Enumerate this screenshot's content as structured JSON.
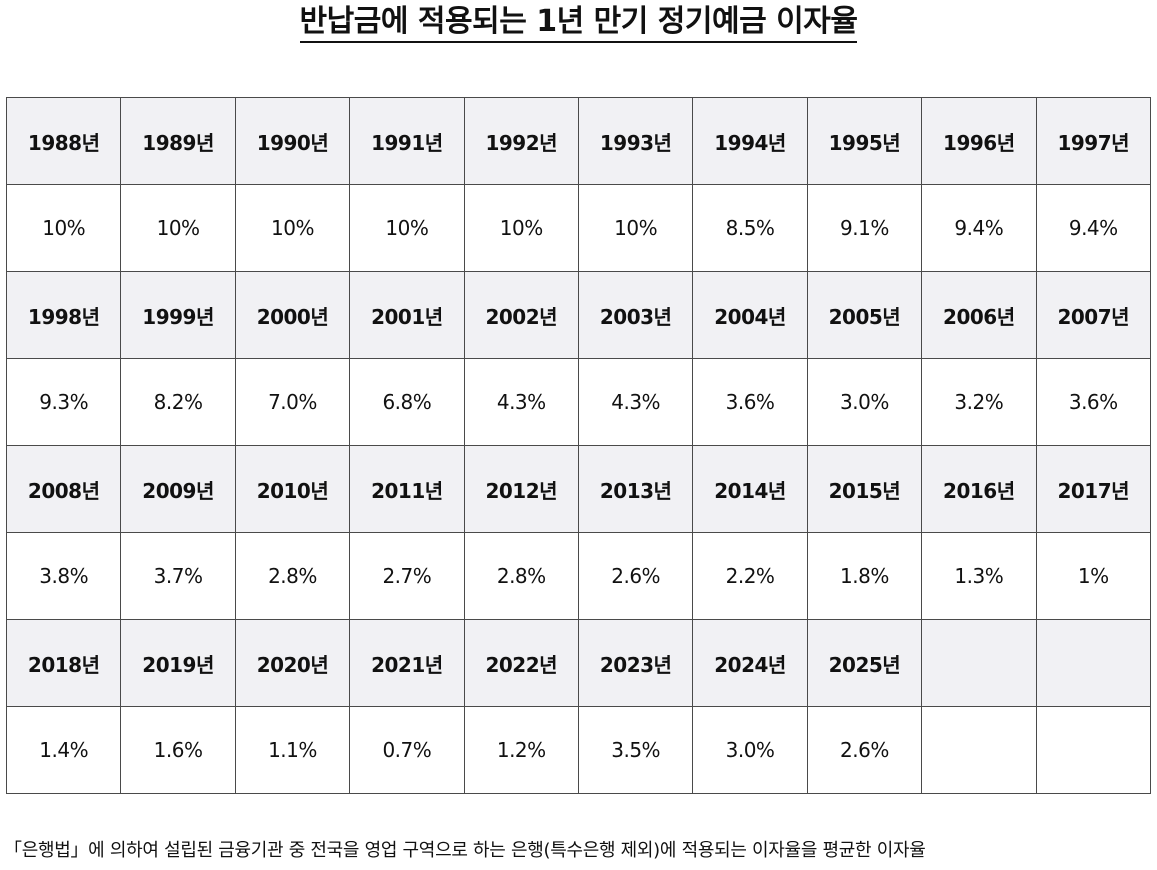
{
  "title": "반납금에 적용되는 1년 만기 정기예금 이자율",
  "table": {
    "rows": [
      {
        "years": [
          "1988년",
          "1989년",
          "1990년",
          "1991년",
          "1992년",
          "1993년",
          "1994년",
          "1995년",
          "1996년",
          "1997년"
        ],
        "rates": [
          "10%",
          "10%",
          "10%",
          "10%",
          "10%",
          "10%",
          "8.5%",
          "9.1%",
          "9.4%",
          "9.4%"
        ]
      },
      {
        "years": [
          "1998년",
          "1999년",
          "2000년",
          "2001년",
          "2002년",
          "2003년",
          "2004년",
          "2005년",
          "2006년",
          "2007년"
        ],
        "rates": [
          "9.3%",
          "8.2%",
          "7.0%",
          "6.8%",
          "4.3%",
          "4.3%",
          "3.6%",
          "3.0%",
          "3.2%",
          "3.6%"
        ]
      },
      {
        "years": [
          "2008년",
          "2009년",
          "2010년",
          "2011년",
          "2012년",
          "2013년",
          "2014년",
          "2015년",
          "2016년",
          "2017년"
        ],
        "rates": [
          "3.8%",
          "3.7%",
          "2.8%",
          "2.7%",
          "2.8%",
          "2.6%",
          "2.2%",
          "1.8%",
          "1.3%",
          "1%"
        ]
      },
      {
        "years": [
          "2018년",
          "2019년",
          "2020년",
          "2021년",
          "2022년",
          "2023년",
          "2024년",
          "2025년",
          "",
          ""
        ],
        "rates": [
          "1.4%",
          "1.6%",
          "1.1%",
          "0.7%",
          "1.2%",
          "3.5%",
          "3.0%",
          "2.6%",
          "",
          ""
        ]
      }
    ]
  },
  "footnote": "「은행법」에 의하여 설립된 금융기관 중 전국을 영업 구역으로 하는 은행(특수은행 제외)에 적용되는 이자율을 평균한 이자율"
}
